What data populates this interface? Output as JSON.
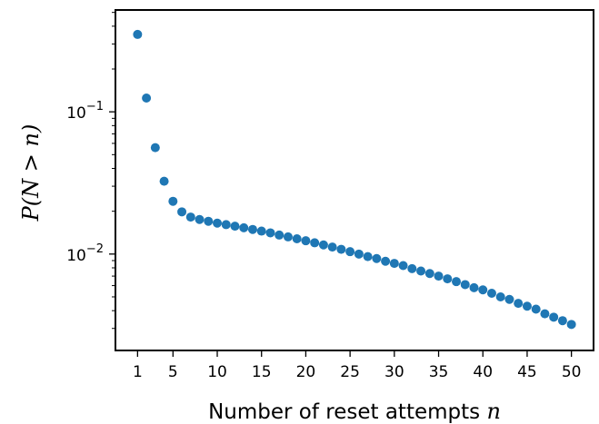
{
  "chart_data": {
    "type": "scatter",
    "title": "",
    "xlabel": "Number of reset attempts",
    "xlabel_var": "n",
    "ylabel": "P(N > n)",
    "yscale": "log",
    "xlim": [
      -1.5,
      52.5
    ],
    "ylim": [
      0.0021,
      0.52
    ],
    "grid": false,
    "marker_color": "#1f77b4",
    "x_ticks": [
      1,
      5,
      10,
      15,
      20,
      25,
      30,
      35,
      40,
      45,
      50
    ],
    "x_tick_labels": [
      "1",
      "5",
      "10",
      "15",
      "20",
      "25",
      "30",
      "35",
      "40",
      "45",
      "50"
    ],
    "y_ticks": [
      0.1,
      0.01
    ],
    "y_tick_labels": [
      {
        "base": "10",
        "exp": "−1"
      },
      {
        "base": "10",
        "exp": "−2"
      }
    ],
    "series": [
      {
        "x": [
          1,
          2,
          3,
          4,
          5,
          6,
          7,
          8,
          9,
          10,
          11,
          12,
          13,
          14,
          15,
          16,
          17,
          18,
          19,
          20,
          21,
          22,
          23,
          24,
          25,
          26,
          27,
          28,
          29,
          30,
          31,
          32,
          33,
          34,
          35,
          36,
          37,
          38,
          39,
          40,
          41,
          42,
          43,
          44,
          45,
          46,
          47,
          48,
          49,
          50
        ],
        "values": [
          0.35,
          0.125,
          0.056,
          0.0325,
          0.0235,
          0.0198,
          0.0182,
          0.0175,
          0.017,
          0.0165,
          0.0161,
          0.0157,
          0.0153,
          0.0149,
          0.0145,
          0.0141,
          0.0136,
          0.0132,
          0.0128,
          0.0124,
          0.012,
          0.0116,
          0.0112,
          0.0108,
          0.0104,
          0.01,
          0.0096,
          0.0093,
          0.0089,
          0.0086,
          0.0083,
          0.0079,
          0.0076,
          0.0073,
          0.007,
          0.0067,
          0.0064,
          0.0061,
          0.0058,
          0.0056,
          0.0053,
          0.005,
          0.0048,
          0.0045,
          0.0043,
          0.0041,
          0.0038,
          0.0036,
          0.0034,
          0.0032
        ]
      }
    ]
  }
}
